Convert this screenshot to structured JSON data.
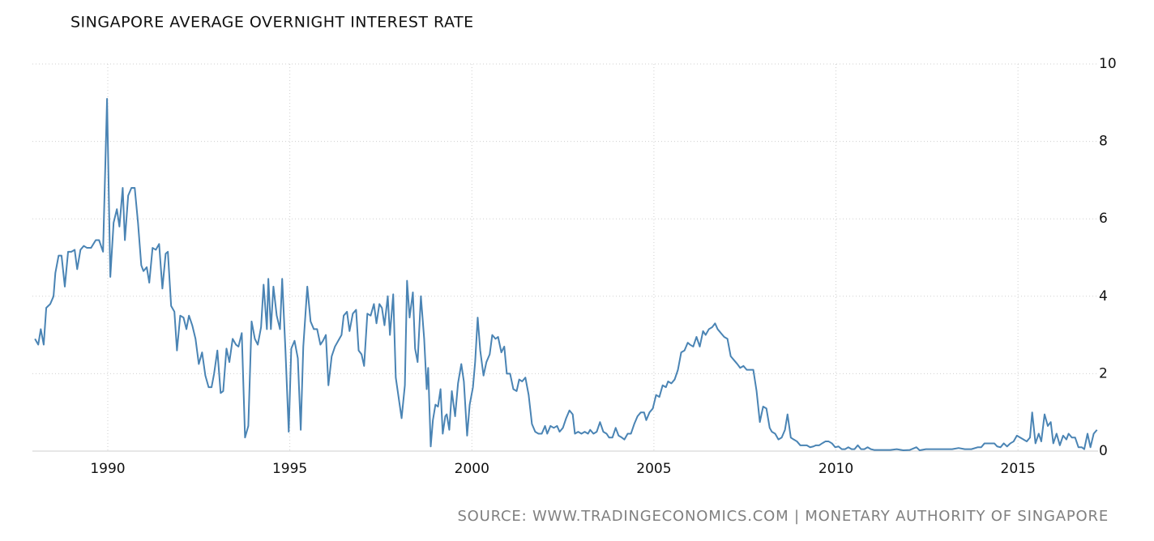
{
  "chart_data": {
    "type": "line",
    "title": "SINGAPORE AVERAGE OVERNIGHT INTEREST RATE",
    "source": "SOURCE: WWW.TRADINGECONOMICS.COM | MONETARY AUTHORITY OF SINGAPORE",
    "color": "#4a84b4",
    "grid": true,
    "xlim": [
      1987.93,
      2017.2
    ],
    "xticks": [
      1990,
      1995,
      2000,
      2005,
      2010,
      2015
    ],
    "ylim": [
      0,
      10
    ],
    "yticks": [
      0,
      2,
      4,
      6,
      8,
      10
    ],
    "x": [
      1988.0,
      1988.09,
      1988.16,
      1988.24,
      1988.31,
      1988.42,
      1988.51,
      1988.56,
      1988.65,
      1988.73,
      1988.82,
      1988.91,
      1989.0,
      1989.09,
      1989.16,
      1989.25,
      1989.34,
      1989.43,
      1989.54,
      1989.67,
      1989.76,
      1989.87,
      1989.98,
      1990.07,
      1990.16,
      1990.25,
      1990.32,
      1990.41,
      1990.47,
      1990.56,
      1990.65,
      1990.74,
      1990.83,
      1990.92,
      1990.98,
      1991.07,
      1991.14,
      1991.23,
      1991.32,
      1991.41,
      1991.5,
      1991.59,
      1991.65,
      1991.74,
      1991.83,
      1991.9,
      1991.99,
      1992.08,
      1992.16,
      1992.23,
      1992.32,
      1992.41,
      1992.5,
      1992.59,
      1992.68,
      1992.77,
      1992.85,
      1992.92,
      1993.01,
      1993.1,
      1993.17,
      1993.26,
      1993.34,
      1993.43,
      1993.52,
      1993.59,
      1993.68,
      1993.77,
      1993.86,
      1993.95,
      1994.04,
      1994.12,
      1994.21,
      1994.28,
      1994.37,
      1994.41,
      1994.48,
      1994.55,
      1994.64,
      1994.73,
      1994.79,
      1994.88,
      1994.97,
      1995.04,
      1995.13,
      1995.22,
      1995.3,
      1995.37,
      1995.48,
      1995.57,
      1995.66,
      1995.75,
      1995.84,
      1995.91,
      1995.99,
      1996.06,
      1996.15,
      1996.24,
      1996.33,
      1996.42,
      1996.48,
      1996.57,
      1996.64,
      1996.73,
      1996.82,
      1996.89,
      1996.97,
      1997.04,
      1997.13,
      1997.22,
      1997.31,
      1997.38,
      1997.46,
      1997.53,
      1997.6,
      1997.69,
      1997.75,
      1997.84,
      1997.91,
      1998.07,
      1998.16,
      1998.22,
      1998.29,
      1998.38,
      1998.44,
      1998.51,
      1998.6,
      1998.69,
      1998.76,
      1998.8,
      1998.87,
      1998.93,
      1999.0,
      1999.07,
      1999.14,
      1999.2,
      1999.27,
      1999.31,
      1999.38,
      1999.45,
      1999.54,
      1999.62,
      1999.71,
      1999.78,
      1999.87,
      1999.94,
      2000.03,
      2000.09,
      2000.16,
      2000.23,
      2000.32,
      2000.4,
      2000.49,
      2000.56,
      2000.65,
      2000.72,
      2000.81,
      2000.89,
      2000.96,
      2001.05,
      2001.14,
      2001.23,
      2001.3,
      2001.38,
      2001.47,
      2001.56,
      2001.65,
      2001.74,
      2001.83,
      2001.92,
      2002.01,
      2002.07,
      2002.16,
      2002.25,
      2002.34,
      2002.41,
      2002.5,
      2002.59,
      2002.68,
      2002.77,
      2002.83,
      2002.92,
      2003.01,
      2003.1,
      2003.19,
      2003.25,
      2003.34,
      2003.43,
      2003.52,
      2003.61,
      2003.7,
      2003.77,
      2003.86,
      2003.95,
      2004.03,
      2004.12,
      2004.19,
      2004.28,
      2004.37,
      2004.46,
      2004.55,
      2004.64,
      2004.73,
      2004.79,
      2004.88,
      2004.97,
      2005.06,
      2005.15,
      2005.24,
      2005.33,
      2005.39,
      2005.48,
      2005.57,
      2005.66,
      2005.75,
      2005.84,
      2005.93,
      2005.99,
      2006.08,
      2006.17,
      2006.26,
      2006.35,
      2006.42,
      2006.51,
      2006.6,
      2006.68,
      2006.75,
      2006.84,
      2006.93,
      2007.02,
      2007.11,
      2007.2,
      2007.29,
      2007.37,
      2007.46,
      2007.55,
      2007.64,
      2007.73,
      2007.82,
      2007.91,
      2008.0,
      2008.09,
      2008.18,
      2008.24,
      2008.33,
      2008.42,
      2008.51,
      2008.6,
      2008.67,
      2008.76,
      2008.84,
      2008.93,
      2009.02,
      2009.11,
      2009.2,
      2009.29,
      2009.38,
      2009.45,
      2009.54,
      2009.62,
      2009.71,
      2009.8,
      2009.89,
      2009.98,
      2010.07,
      2010.16,
      2010.25,
      2010.34,
      2010.43,
      2010.51,
      2010.6,
      2010.69,
      2010.78,
      2010.87,
      2010.96,
      2011.05,
      2011.14,
      2011.32,
      2011.49,
      2011.67,
      2011.85,
      2012.03,
      2012.21,
      2012.3,
      2012.47,
      2012.65,
      2012.83,
      2013.01,
      2013.19,
      2013.37,
      2013.54,
      2013.72,
      2013.9,
      2013.99,
      2014.08,
      2014.17,
      2014.26,
      2014.35,
      2014.43,
      2014.52,
      2014.61,
      2014.7,
      2014.79,
      2014.88,
      2014.97,
      2015.06,
      2015.15,
      2015.24,
      2015.33,
      2015.39,
      2015.48,
      2015.57,
      2015.64,
      2015.73,
      2015.82,
      2015.9,
      2015.97,
      2016.06,
      2016.15,
      2016.24,
      2016.33,
      2016.39,
      2016.48,
      2016.57,
      2016.66,
      2016.75,
      2016.82,
      2016.91,
      2016.99,
      2017.08,
      2017.17
    ],
    "values": [
      2.9,
      2.75,
      3.15,
      2.75,
      3.7,
      3.8,
      4.0,
      4.6,
      5.05,
      5.05,
      4.25,
      5.15,
      5.15,
      5.2,
      4.7,
      5.2,
      5.3,
      5.25,
      5.25,
      5.45,
      5.45,
      5.15,
      9.1,
      4.5,
      5.9,
      6.25,
      5.8,
      6.8,
      5.45,
      6.6,
      6.8,
      6.8,
      5.9,
      4.8,
      4.65,
      4.75,
      4.35,
      5.25,
      5.2,
      5.35,
      4.2,
      5.1,
      5.15,
      3.75,
      3.6,
      2.6,
      3.5,
      3.45,
      3.15,
      3.5,
      3.25,
      2.9,
      2.25,
      2.55,
      1.95,
      1.65,
      1.65,
      2.0,
      2.6,
      1.5,
      1.55,
      2.65,
      2.3,
      2.9,
      2.75,
      2.7,
      3.05,
      0.35,
      0.65,
      3.35,
      2.9,
      2.75,
      3.2,
      4.3,
      3.15,
      4.45,
      3.15,
      4.25,
      3.5,
      3.15,
      4.45,
      2.6,
      0.5,
      2.65,
      2.85,
      2.4,
      0.55,
      2.7,
      4.25,
      3.35,
      3.15,
      3.15,
      2.75,
      2.85,
      3.0,
      1.7,
      2.45,
      2.7,
      2.85,
      3.0,
      3.5,
      3.6,
      3.1,
      3.55,
      3.65,
      2.6,
      2.5,
      2.2,
      3.55,
      3.5,
      3.8,
      3.3,
      3.8,
      3.7,
      3.25,
      4.0,
      3.0,
      4.05,
      1.9,
      0.85,
      1.7,
      4.4,
      3.45,
      4.1,
      2.65,
      2.3,
      4.0,
      2.9,
      1.6,
      2.15,
      0.12,
      0.8,
      1.2,
      1.15,
      1.6,
      0.45,
      0.9,
      0.95,
      0.55,
      1.55,
      0.9,
      1.75,
      2.25,
      1.8,
      0.4,
      1.2,
      1.65,
      2.3,
      3.45,
      2.6,
      1.95,
      2.3,
      2.5,
      3.0,
      2.9,
      2.95,
      2.55,
      2.7,
      2.0,
      2.0,
      1.6,
      1.55,
      1.85,
      1.8,
      1.9,
      1.45,
      0.7,
      0.5,
      0.45,
      0.45,
      0.65,
      0.45,
      0.65,
      0.6,
      0.65,
      0.5,
      0.6,
      0.85,
      1.05,
      0.95,
      0.45,
      0.5,
      0.45,
      0.5,
      0.45,
      0.55,
      0.45,
      0.5,
      0.75,
      0.5,
      0.45,
      0.35,
      0.35,
      0.6,
      0.4,
      0.35,
      0.3,
      0.45,
      0.45,
      0.7,
      0.9,
      1.0,
      1.0,
      0.8,
      1.0,
      1.1,
      1.45,
      1.4,
      1.7,
      1.65,
      1.8,
      1.75,
      1.85,
      2.1,
      2.55,
      2.6,
      2.8,
      2.75,
      2.7,
      2.95,
      2.7,
      3.1,
      3.0,
      3.15,
      3.2,
      3.3,
      3.15,
      3.05,
      2.95,
      2.9,
      2.45,
      2.35,
      2.25,
      2.15,
      2.2,
      2.1,
      2.1,
      2.1,
      1.55,
      0.75,
      1.15,
      1.1,
      0.6,
      0.5,
      0.45,
      0.3,
      0.35,
      0.55,
      0.95,
      0.35,
      0.3,
      0.25,
      0.15,
      0.15,
      0.15,
      0.1,
      0.12,
      0.15,
      0.15,
      0.2,
      0.25,
      0.25,
      0.2,
      0.1,
      0.12,
      0.05,
      0.05,
      0.1,
      0.05,
      0.05,
      0.15,
      0.05,
      0.05,
      0.1,
      0.05,
      0.03,
      0.03,
      0.03,
      0.03,
      0.05,
      0.02,
      0.03,
      0.1,
      0.02,
      0.05,
      0.05,
      0.05,
      0.05,
      0.05,
      0.08,
      0.05,
      0.05,
      0.1,
      0.1,
      0.2,
      0.2,
      0.2,
      0.2,
      0.12,
      0.1,
      0.2,
      0.12,
      0.2,
      0.25,
      0.4,
      0.35,
      0.3,
      0.25,
      0.35,
      1.0,
      0.2,
      0.45,
      0.25,
      0.95,
      0.65,
      0.75,
      0.2,
      0.45,
      0.15,
      0.4,
      0.3,
      0.45,
      0.35,
      0.35,
      0.1,
      0.1,
      0.05,
      0.45,
      0.1,
      0.45,
      0.55
    ]
  }
}
